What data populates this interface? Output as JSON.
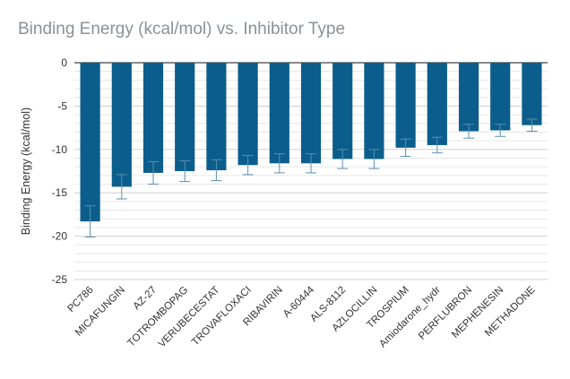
{
  "chart_data": {
    "type": "bar",
    "title": "Binding Energy (kcal/mol) vs. Inhibitor Type",
    "xlabel": "",
    "ylabel": "Binding Energy (kcal/mol)",
    "ylim": [
      -25,
      0
    ],
    "yticks": [
      0,
      -5,
      -10,
      -15,
      -20,
      -25
    ],
    "grid": true,
    "legend": "none",
    "bar_color": "#0b5e8c",
    "error_color": "#5a8fb0",
    "categories": [
      "PC786",
      "MICAFUNGIN",
      "AZ-27",
      "TOTROMBOPAG",
      "VERUBECESTAT",
      "TROVAFLOXACI",
      "RIBAVIRIN",
      "A-60444",
      "ALS-8112",
      "AZLOCILLIN",
      "TROSPIUM",
      "Amiodarone_hydr",
      "PERFLUBRON",
      "MEPHENESIN",
      "METHADONE"
    ],
    "values": [
      -18.3,
      -14.3,
      -12.7,
      -12.5,
      -12.4,
      -11.8,
      -11.6,
      -11.6,
      -11.1,
      -11.1,
      -9.8,
      -9.5,
      -7.9,
      -7.8,
      -7.2
    ],
    "errors": [
      1.8,
      1.4,
      1.3,
      1.2,
      1.2,
      1.1,
      1.1,
      1.1,
      1.1,
      1.1,
      1.0,
      0.9,
      0.8,
      0.7,
      0.7
    ]
  }
}
